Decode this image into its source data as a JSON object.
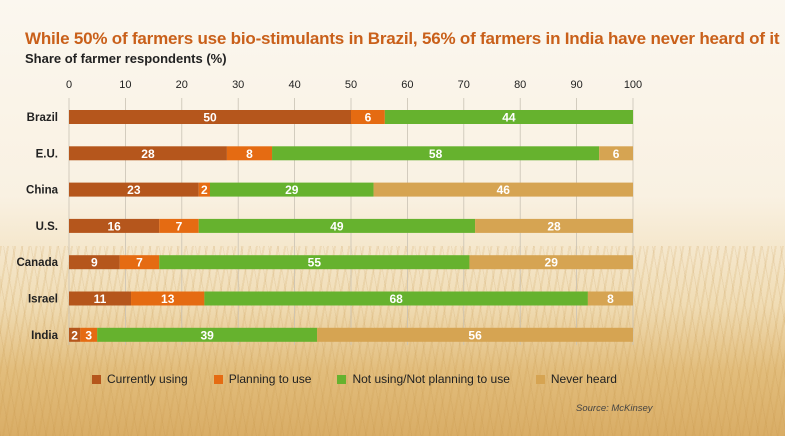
{
  "title": "While 50% of farmers use bio-stimulants in Brazil, 56% of farmers in India have never heard of it",
  "subtitle": "Share of farmer respondents (%)",
  "source": "Source: McKinsey",
  "colors": {
    "Currently using": "#b5561c",
    "Planning to use": "#e56b12",
    "Not using/Not planning to use": "#66b22e",
    "Never heard": "#d6a452"
  },
  "chart_data": {
    "type": "bar",
    "orientation": "horizontal",
    "stacked": true,
    "title": "While 50% of farmers use bio-stimulants in Brazil, 56% of farmers in India have never heard of it",
    "subtitle": "Share of farmer respondents (%)",
    "xlim": [
      0,
      100
    ],
    "x_ticks": [
      0,
      10,
      20,
      30,
      40,
      50,
      60,
      70,
      80,
      90,
      100
    ],
    "grid": true,
    "legend": "bottom",
    "categories": [
      "Brazil",
      "E.U.",
      "China",
      "U.S.",
      "Canada",
      "Israel",
      "India"
    ],
    "series": [
      {
        "name": "Currently using",
        "values": [
          50,
          28,
          23,
          16,
          9,
          11,
          2
        ]
      },
      {
        "name": "Planning to use",
        "values": [
          6,
          8,
          2,
          7,
          7,
          13,
          3
        ]
      },
      {
        "name": "Not using/Not planning to use",
        "values": [
          44,
          58,
          29,
          49,
          55,
          68,
          39
        ]
      },
      {
        "name": "Never heard",
        "values": [
          0,
          6,
          46,
          28,
          29,
          8,
          56
        ]
      }
    ]
  }
}
